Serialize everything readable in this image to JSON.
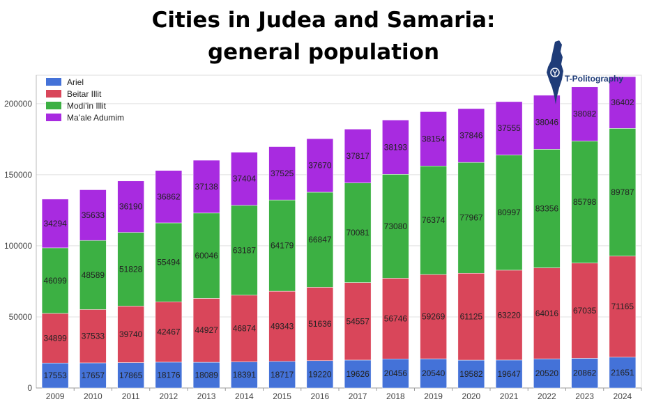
{
  "title_line1": "Cities in Judea and Samaria:",
  "title_line2": "general population",
  "logo_text": "T-Politography",
  "chart_data": {
    "type": "bar",
    "stacked": true,
    "categories": [
      "2009",
      "2010",
      "2011",
      "2012",
      "2013",
      "2014",
      "2015",
      "2016",
      "2017",
      "2018",
      "2019",
      "2020",
      "2021",
      "2022",
      "2023",
      "2024"
    ],
    "series": [
      {
        "name": "Ariel",
        "color": "#4472d8",
        "values": [
          17553,
          17657,
          17865,
          18176,
          18089,
          18391,
          18717,
          19220,
          19626,
          20456,
          20540,
          19582,
          19647,
          20520,
          20862,
          21651
        ]
      },
      {
        "name": "Beitar Illit",
        "color": "#d9465a",
        "values": [
          34899,
          37533,
          39740,
          42467,
          44927,
          46874,
          49343,
          51636,
          54557,
          56746,
          59269,
          61125,
          63220,
          64016,
          67035,
          71165
        ]
      },
      {
        "name": "Modi’in Illit",
        "color": "#3cb043",
        "values": [
          46099,
          48589,
          51828,
          55494,
          60046,
          63187,
          64179,
          66847,
          70081,
          73080,
          76374,
          77967,
          80997,
          83356,
          85798,
          89787
        ]
      },
      {
        "name": "Ma’ale Adumim",
        "color": "#a82be0",
        "values": [
          34294,
          35633,
          36190,
          36862,
          37138,
          37404,
          37525,
          37670,
          37817,
          38193,
          38154,
          37846,
          37555,
          38046,
          38082,
          36402
        ]
      }
    ],
    "ylim": [
      0,
      220000
    ],
    "yticks": [
      0,
      50000,
      100000,
      150000,
      200000
    ],
    "grid": true,
    "legend_position": "top-left"
  }
}
